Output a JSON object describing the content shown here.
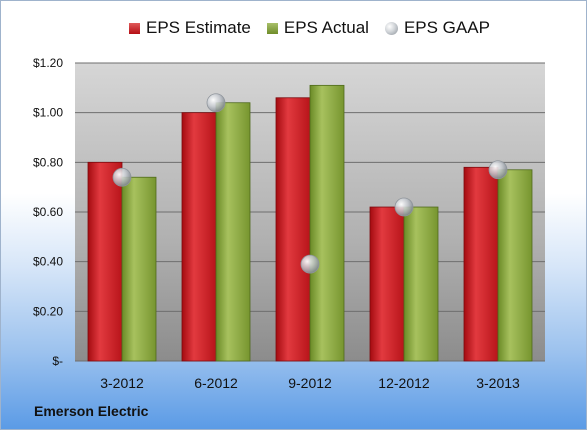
{
  "chart_data": {
    "type": "bar",
    "categories": [
      "3-2012",
      "6-2012",
      "9-2012",
      "12-2012",
      "3-2013"
    ],
    "series": [
      {
        "name": "EPS Estimate",
        "values": [
          0.8,
          1.0,
          1.06,
          0.62,
          0.78
        ],
        "color": "#c3161c"
      },
      {
        "name": "EPS Actual",
        "values": [
          0.74,
          1.04,
          1.11,
          0.62,
          0.77
        ],
        "color": "#82a03a"
      }
    ],
    "scatter_series": {
      "name": "EPS GAAP",
      "values": [
        0.74,
        1.04,
        0.39,
        0.62,
        0.77
      ],
      "color": "#b8bcc2"
    },
    "ylim": [
      0,
      1.2
    ],
    "yticks": [
      {
        "value": 1.2,
        "label": "$1.20"
      },
      {
        "value": 1.0,
        "label": "$1.00"
      },
      {
        "value": 0.8,
        "label": "$0.80"
      },
      {
        "value": 0.6,
        "label": "$0.60"
      },
      {
        "value": 0.4,
        "label": "$0.40"
      },
      {
        "value": 0.2,
        "label": "$0.20"
      },
      {
        "value": 0.0,
        "label": "$-"
      }
    ],
    "grid": true,
    "legend_position": "top"
  },
  "footer": {
    "company": "Emerson Electric"
  }
}
